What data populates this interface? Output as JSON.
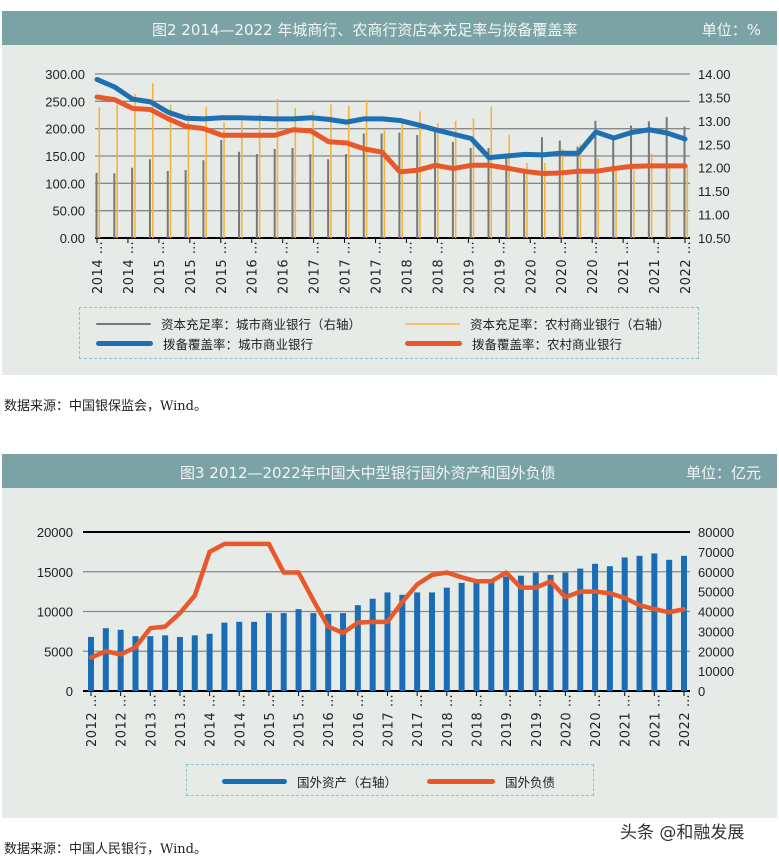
{
  "figure2": {
    "title": "图2  2014—2022 年城商行、农商行资店本充足率与拨备覆盖率",
    "unit": "单位：%",
    "source": "数据来源：中国银保监会，Wind。",
    "legend": [
      {
        "label": "资本充足率：城市商业银行（右轴）",
        "color": "#777777"
      },
      {
        "label": "资本充足率：农村商业银行（右轴）",
        "color": "#f3b33d"
      },
      {
        "label": "拨备覆盖率：城市商业银行",
        "color": "#1f6fb5"
      },
      {
        "label": "拨备覆盖率：农村商业银行",
        "color": "#e8582a"
      }
    ]
  },
  "figure3": {
    "title": "图3  2012—2022年中国大中型银行国外资产和国外负债",
    "unit": "单位：亿元",
    "source": "数据来源：中国人民银行，Wind。",
    "legend": [
      {
        "label": "国外资产（右轴）",
        "color": "#1a6db5"
      },
      {
        "label": "国外负债",
        "color": "#e8582a"
      }
    ]
  },
  "watermark": "头条 @和融发展",
  "chart_data": [
    {
      "type": "bar+line",
      "title": "图2  2014—2022 年城商行、农商行资店本充足率与拨备覆盖率",
      "x_tick_labels": [
        "2014 …",
        "2014 …",
        "2015 …",
        "2015 …",
        "2015 …",
        "2016 …",
        "2016 …",
        "2017 …",
        "2017 …",
        "2017 …",
        "2018 …",
        "2018 …",
        "2019 …",
        "2019 …",
        "2020 …",
        "2020 …",
        "2020 …",
        "2021 …",
        "2021 …",
        "2022 …"
      ],
      "y_left": {
        "ticks": [
          "0.00",
          "50.00",
          "100.00",
          "150.00",
          "200.00",
          "250.00",
          "300.00"
        ],
        "range": [
          0,
          300
        ]
      },
      "y_right": {
        "ticks": [
          "10.50",
          "11.00",
          "11.50",
          "12.00",
          "12.50",
          "13.00",
          "13.50",
          "14.00"
        ],
        "range": [
          10.5,
          14.0
        ]
      },
      "grid": true,
      "legend_position": "bottom",
      "series": [
        {
          "name": "资本充足率：城市商业银行（右轴）",
          "kind": "bar",
          "axis": "right",
          "color": "#777777",
          "values": [
            11.89,
            11.88,
            12.0,
            12.18,
            11.93,
            11.95,
            12.16,
            12.59,
            12.34,
            12.29,
            12.4,
            12.42,
            12.29,
            12.18,
            12.29,
            12.73,
            12.73,
            12.75,
            12.7,
            12.8,
            12.55,
            12.42,
            12.42,
            12.3,
            11.98,
            12.65,
            12.58,
            12.45,
            13.0,
            12.6,
            12.9,
            12.99,
            13.08,
            12.88
          ]
        },
        {
          "name": "资本充足率：农村商业银行（右轴）",
          "kind": "bar",
          "axis": "right",
          "color": "#f3b33d",
          "values": [
            13.29,
            13.35,
            13.57,
            13.8,
            13.34,
            13.15,
            13.3,
            12.97,
            13.0,
            13.14,
            13.47,
            13.28,
            13.2,
            13.35,
            13.32,
            13.45,
            12.8,
            13.0,
            13.2,
            12.95,
            13.0,
            13.05,
            13.3,
            12.7,
            12.1,
            12.1,
            12.4,
            12.5,
            12.2,
            11.95,
            11.95,
            12.3,
            12.0,
            12.05
          ]
        },
        {
          "name": "拨备覆盖率：城市商业银行",
          "kind": "line",
          "axis": "left",
          "color": "#1f6fb5",
          "values": [
            290,
            276,
            254,
            249,
            230,
            219,
            218,
            220,
            220,
            219,
            218,
            218,
            220,
            217,
            212,
            218,
            218,
            215,
            207,
            198,
            190,
            182,
            147,
            150,
            153,
            152,
            155,
            155,
            194,
            183,
            193,
            198,
            192,
            181
          ]
        },
        {
          "name": "拨备覆盖率：农村商业银行",
          "kind": "line",
          "axis": "left",
          "color": "#e8582a",
          "values": [
            258,
            253,
            237,
            235,
            218,
            204,
            200,
            188,
            188,
            188,
            188,
            198,
            196,
            176,
            174,
            163,
            157,
            121,
            124,
            133,
            127,
            133,
            133,
            128,
            122,
            118,
            119,
            122,
            122,
            127,
            131,
            132,
            132,
            132
          ]
        }
      ]
    },
    {
      "type": "bar+line",
      "title": "图3  2012—2022年中国大中型银行国外资产和国外负债",
      "x_tick_labels": [
        "2012 …",
        "2012 …",
        "2013 …",
        "2013 …",
        "2014 …",
        "2014 …",
        "2015 …",
        "2015 …",
        "2016 …",
        "2016 …",
        "2017 …",
        "2017 …",
        "2018 …",
        "2018 …",
        "2019 …",
        "2019 …",
        "2020 …",
        "2020 …",
        "2021 …",
        "2021 …",
        "2022 …"
      ],
      "y_left": {
        "ticks": [
          "0",
          "5000",
          "10000",
          "15000",
          "20000"
        ],
        "range": [
          0,
          20000
        ]
      },
      "y_right": {
        "ticks": [
          "0",
          "10000",
          "20000",
          "30000",
          "40000",
          "50000",
          "60000",
          "70000",
          "80000"
        ],
        "range": [
          0,
          80000
        ]
      },
      "grid": true,
      "legend_position": "bottom",
      "series": [
        {
          "name": "国外资产（右轴）",
          "kind": "bar",
          "axis": "right",
          "color": "#1a6db5",
          "values": [
            27200,
            31600,
            30800,
            27600,
            27600,
            28000,
            27200,
            28000,
            28800,
            34400,
            34800,
            34800,
            39200,
            39200,
            41200,
            39200,
            38800,
            39200,
            43200,
            46400,
            49600,
            48400,
            49600,
            49600,
            52000,
            54400,
            54400,
            56000,
            57600,
            58000,
            59600,
            58400,
            59600,
            61600,
            64000,
            62800,
            67200,
            68000,
            69200,
            66000,
            68000
          ]
        },
        {
          "name": "国外负债",
          "kind": "line",
          "axis": "left",
          "color": "#e8582a",
          "values": [
            4200,
            5000,
            4600,
            5500,
            7900,
            8100,
            9800,
            12000,
            17500,
            18500,
            18500,
            18500,
            18500,
            14900,
            14900,
            11400,
            8100,
            7300,
            8600,
            8700,
            8700,
            11200,
            13400,
            14600,
            14900,
            14300,
            13800,
            13800,
            14900,
            13000,
            13000,
            13800,
            11800,
            12500,
            12500,
            12300,
            11700,
            10800,
            10300,
            9900,
            10300
          ]
        }
      ]
    }
  ]
}
